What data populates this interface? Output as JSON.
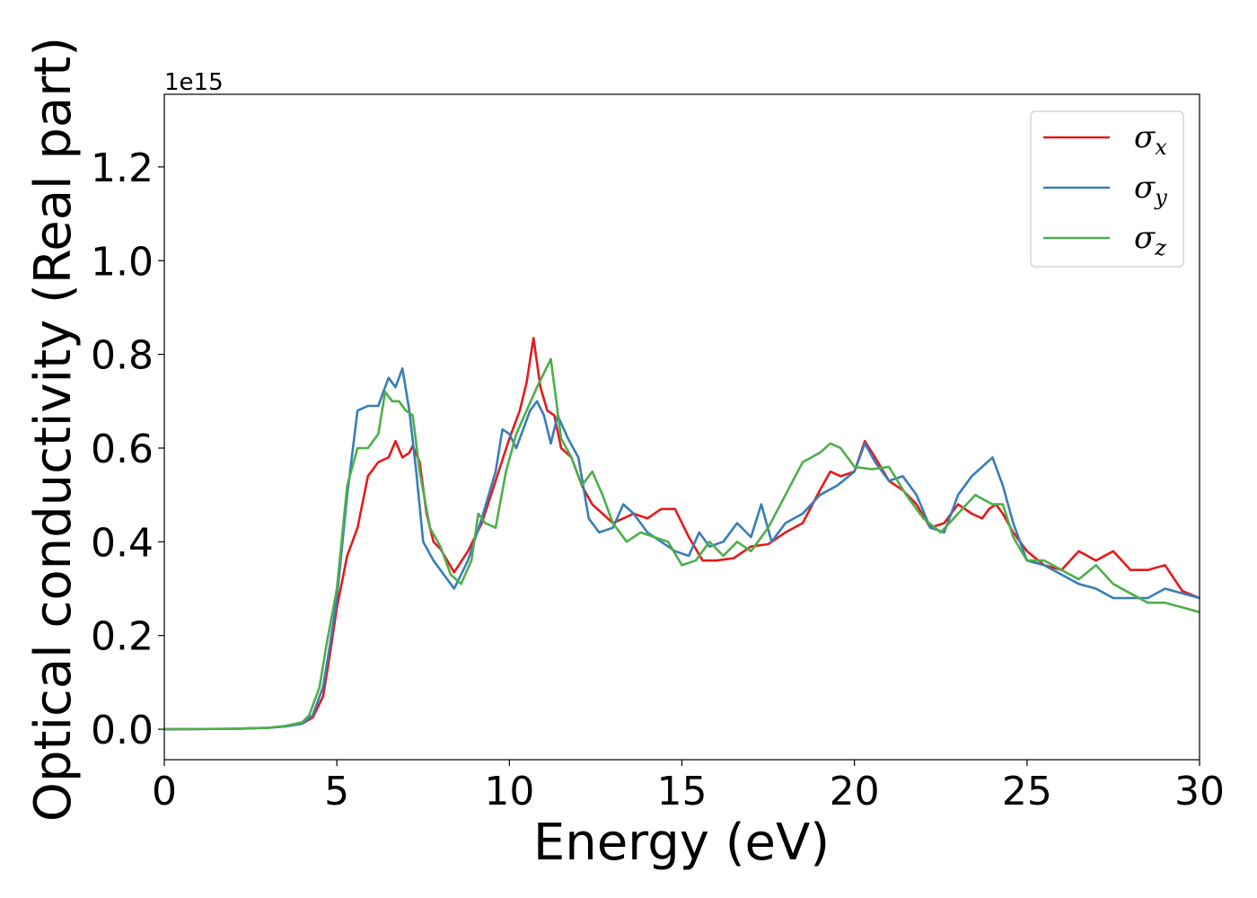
{
  "chart_data": {
    "type": "line",
    "title": "",
    "xlabel": "Energy (eV)",
    "ylabel": "Optical conductivity (Real part)",
    "y_offset_label": "1e15",
    "xlim": [
      0,
      30
    ],
    "ylim": [
      -0.065,
      1.355
    ],
    "x_ticks": [
      0,
      5,
      10,
      15,
      20,
      25,
      30
    ],
    "x_tick_labels": [
      "0",
      "5",
      "10",
      "15",
      "20",
      "25",
      "30"
    ],
    "y_ticks": [
      0.0,
      0.2,
      0.4,
      0.6,
      0.8,
      1.0,
      1.2
    ],
    "y_tick_labels": [
      "0.0",
      "0.2",
      "0.4",
      "0.6",
      "0.8",
      "1.0",
      "1.2"
    ],
    "grid": false,
    "legend_position": "top-right",
    "series": [
      {
        "name": "σx",
        "symbol": "σ",
        "subscript": "x",
        "color": "#e41a1c",
        "x": [
          0,
          2,
          3,
          3.5,
          4,
          4.3,
          4.6,
          4.8,
          5.0,
          5.3,
          5.6,
          5.9,
          6.2,
          6.5,
          6.7,
          6.9,
          7.1,
          7.2,
          7.4,
          7.6,
          7.8,
          8.0,
          8.4,
          8.8,
          9.2,
          9.6,
          10.0,
          10.3,
          10.5,
          10.7,
          10.9,
          11.1,
          11.3,
          11.5,
          11.8,
          12.1,
          12.4,
          12.7,
          13.0,
          13.3,
          13.6,
          14.0,
          14.4,
          14.8,
          15.2,
          15.6,
          16.0,
          16.5,
          17.0,
          17.5,
          18.0,
          18.5,
          19.0,
          19.3,
          19.6,
          20.0,
          20.3,
          20.6,
          21.0,
          21.4,
          21.8,
          22.2,
          22.6,
          23.0,
          23.4,
          23.7,
          23.9,
          24.1,
          24.3,
          24.6,
          25.0,
          25.5,
          26.0,
          26.5,
          27.0,
          27.5,
          28.0,
          28.5,
          29.0,
          29.5,
          30.0
        ],
        "y": [
          0.0,
          0.001,
          0.003,
          0.006,
          0.012,
          0.025,
          0.07,
          0.16,
          0.26,
          0.37,
          0.43,
          0.54,
          0.57,
          0.58,
          0.615,
          0.58,
          0.59,
          0.605,
          0.57,
          0.46,
          0.4,
          0.385,
          0.335,
          0.38,
          0.44,
          0.53,
          0.62,
          0.68,
          0.74,
          0.835,
          0.73,
          0.68,
          0.67,
          0.6,
          0.58,
          0.52,
          0.48,
          0.46,
          0.44,
          0.45,
          0.46,
          0.45,
          0.47,
          0.47,
          0.41,
          0.36,
          0.36,
          0.365,
          0.39,
          0.395,
          0.42,
          0.44,
          0.51,
          0.55,
          0.54,
          0.55,
          0.615,
          0.58,
          0.53,
          0.51,
          0.48,
          0.43,
          0.44,
          0.48,
          0.46,
          0.45,
          0.47,
          0.48,
          0.46,
          0.42,
          0.38,
          0.35,
          0.34,
          0.38,
          0.36,
          0.38,
          0.34,
          0.34,
          0.35,
          0.295,
          0.28
        ]
      },
      {
        "name": "σy",
        "symbol": "σ",
        "subscript": "y",
        "color": "#377eb8",
        "x": [
          0,
          2,
          3,
          3.5,
          4,
          4.3,
          4.6,
          4.8,
          5.0,
          5.3,
          5.6,
          5.9,
          6.2,
          6.5,
          6.7,
          6.9,
          7.1,
          7.3,
          7.5,
          7.8,
          8.0,
          8.4,
          8.8,
          9.2,
          9.6,
          9.8,
          10.0,
          10.2,
          10.4,
          10.6,
          10.8,
          11.0,
          11.2,
          11.4,
          11.7,
          12.0,
          12.3,
          12.6,
          13.0,
          13.3,
          13.6,
          14.0,
          14.4,
          14.8,
          15.2,
          15.5,
          15.8,
          16.2,
          16.6,
          17.0,
          17.3,
          17.6,
          18.0,
          18.5,
          19.0,
          19.5,
          20.0,
          20.3,
          20.6,
          21.0,
          21.4,
          21.8,
          22.2,
          22.6,
          23.0,
          23.4,
          23.7,
          24.0,
          24.3,
          24.6,
          25.0,
          25.5,
          26.0,
          26.5,
          27.0,
          27.5,
          28.0,
          28.5,
          29.0,
          29.5,
          30.0
        ],
        "y": [
          0.0,
          0.001,
          0.003,
          0.006,
          0.012,
          0.03,
          0.09,
          0.18,
          0.28,
          0.5,
          0.68,
          0.69,
          0.69,
          0.75,
          0.73,
          0.77,
          0.68,
          0.55,
          0.4,
          0.36,
          0.34,
          0.3,
          0.36,
          0.45,
          0.55,
          0.64,
          0.63,
          0.6,
          0.64,
          0.68,
          0.7,
          0.67,
          0.61,
          0.67,
          0.62,
          0.58,
          0.45,
          0.42,
          0.43,
          0.48,
          0.46,
          0.42,
          0.4,
          0.38,
          0.37,
          0.42,
          0.39,
          0.4,
          0.44,
          0.41,
          0.48,
          0.4,
          0.44,
          0.46,
          0.5,
          0.52,
          0.55,
          0.61,
          0.57,
          0.53,
          0.54,
          0.5,
          0.43,
          0.42,
          0.5,
          0.54,
          0.56,
          0.58,
          0.52,
          0.44,
          0.36,
          0.35,
          0.33,
          0.31,
          0.3,
          0.28,
          0.28,
          0.28,
          0.3,
          0.29,
          0.28
        ]
      },
      {
        "name": "σz",
        "symbol": "σ",
        "subscript": "z",
        "color": "#4daf4a",
        "x": [
          0,
          2,
          3,
          3.5,
          4,
          4.2,
          4.5,
          4.7,
          5.0,
          5.3,
          5.6,
          5.9,
          6.2,
          6.4,
          6.6,
          6.8,
          7.0,
          7.2,
          7.4,
          7.7,
          8.0,
          8.3,
          8.6,
          8.9,
          9.1,
          9.3,
          9.6,
          9.9,
          10.2,
          10.5,
          10.8,
          11.0,
          11.2,
          11.5,
          11.8,
          12.1,
          12.4,
          12.7,
          13.0,
          13.4,
          13.8,
          14.2,
          14.6,
          15.0,
          15.4,
          15.8,
          16.2,
          16.6,
          17.0,
          17.5,
          18.0,
          18.5,
          19.0,
          19.3,
          19.6,
          20.0,
          20.5,
          21.0,
          21.5,
          22.0,
          22.5,
          23.0,
          23.5,
          24.0,
          24.3,
          24.6,
          25.0,
          25.5,
          26.0,
          26.5,
          27.0,
          27.5,
          28.0,
          28.5,
          29.0,
          29.5,
          30.0
        ],
        "y": [
          0.0,
          0.001,
          0.003,
          0.007,
          0.015,
          0.03,
          0.09,
          0.18,
          0.3,
          0.52,
          0.6,
          0.6,
          0.63,
          0.72,
          0.7,
          0.7,
          0.68,
          0.67,
          0.55,
          0.43,
          0.39,
          0.33,
          0.31,
          0.36,
          0.46,
          0.44,
          0.43,
          0.55,
          0.63,
          0.68,
          0.73,
          0.76,
          0.79,
          0.62,
          0.58,
          0.52,
          0.55,
          0.5,
          0.44,
          0.4,
          0.42,
          0.41,
          0.4,
          0.35,
          0.36,
          0.4,
          0.37,
          0.4,
          0.38,
          0.43,
          0.5,
          0.57,
          0.59,
          0.61,
          0.6,
          0.56,
          0.555,
          0.56,
          0.5,
          0.45,
          0.42,
          0.46,
          0.5,
          0.48,
          0.48,
          0.41,
          0.36,
          0.36,
          0.34,
          0.32,
          0.35,
          0.31,
          0.29,
          0.27,
          0.27,
          0.26,
          0.25
        ]
      }
    ]
  }
}
